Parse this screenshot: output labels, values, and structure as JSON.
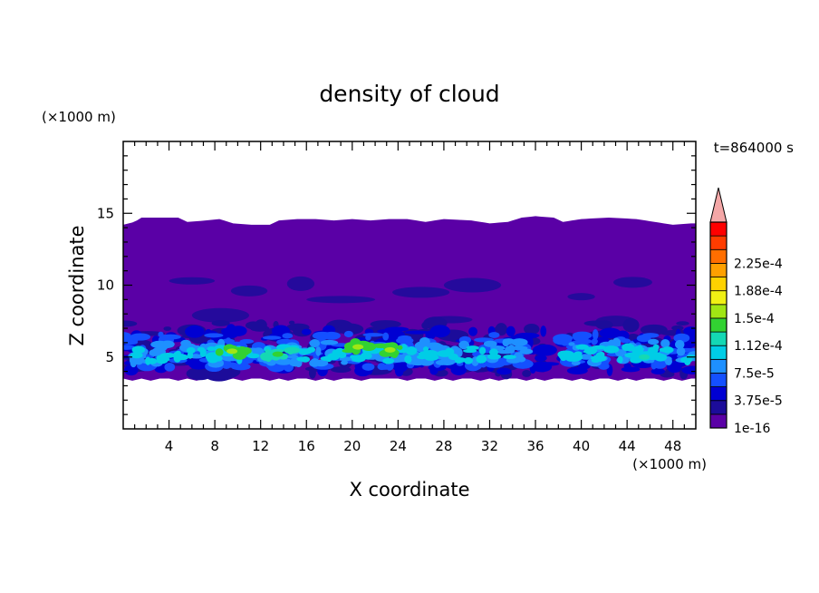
{
  "chart_data": {
    "type": "heatmap",
    "title": "density of cloud",
    "time_label": "t=864000 s",
    "xlabel": "X coordinate",
    "ylabel": "Z coordinate",
    "x_unit": "(×1000 m)",
    "y_unit": "(×1000 m)",
    "xlim": [
      0,
      50
    ],
    "ylim": [
      0,
      20
    ],
    "x_ticks": [
      4,
      8,
      12,
      16,
      20,
      24,
      28,
      32,
      36,
      40,
      44,
      48
    ],
    "y_ticks": [
      5,
      10,
      15
    ],
    "colorbar": {
      "labels": [
        "1e-16",
        "3.75e-5",
        "7.5e-5",
        "1.12e-4",
        "1.5e-4",
        "1.88e-4",
        "2.25e-4"
      ],
      "level_colors": [
        "#5a00a6",
        "#1c0c9a",
        "#0000d2",
        "#1450ff",
        "#1e90ff",
        "#00cde6",
        "#14d8b4",
        "#32d232",
        "#a0e614",
        "#f0f014",
        "#ffd200",
        "#ffa000",
        "#ff6e00",
        "#ff3c00",
        "#ff0000"
      ],
      "extend_color": "#f4a7a7"
    },
    "cloud_layer": {
      "x_range": [
        0,
        50
      ],
      "bottom_z": 3.5,
      "top_z_profile": [
        [
          0,
          14.2
        ],
        [
          1,
          14.4
        ],
        [
          1.6,
          14.7
        ],
        [
          4.8,
          14.7
        ],
        [
          5.6,
          14.4
        ],
        [
          7.2,
          14.5
        ],
        [
          8.4,
          14.6
        ],
        [
          9.6,
          14.3
        ],
        [
          11.2,
          14.2
        ],
        [
          12.8,
          14.2
        ],
        [
          13.6,
          14.5
        ],
        [
          15.2,
          14.6
        ],
        [
          16.8,
          14.6
        ],
        [
          18.4,
          14.5
        ],
        [
          20.0,
          14.6
        ],
        [
          21.6,
          14.5
        ],
        [
          23.2,
          14.6
        ],
        [
          24.8,
          14.6
        ],
        [
          26.4,
          14.4
        ],
        [
          28.0,
          14.6
        ],
        [
          30.4,
          14.5
        ],
        [
          32.0,
          14.3
        ],
        [
          33.6,
          14.4
        ],
        [
          34.8,
          14.7
        ],
        [
          36.0,
          14.8
        ],
        [
          37.6,
          14.7
        ],
        [
          38.4,
          14.4
        ],
        [
          40.0,
          14.6
        ],
        [
          42.4,
          14.7
        ],
        [
          44.8,
          14.6
        ],
        [
          46.4,
          14.4
        ],
        [
          48.0,
          14.2
        ],
        [
          49.6,
          14.3
        ],
        [
          50,
          14.3
        ]
      ],
      "dense_band_z": [
        4.0,
        7.0
      ],
      "peak_regions": [
        {
          "x": 9.5,
          "z": 5.4,
          "level": 8
        },
        {
          "x": 13.5,
          "z": 5.2,
          "level": 7
        },
        {
          "x": 20.5,
          "z": 5.7,
          "level": 8
        },
        {
          "x": 23.3,
          "z": 5.5,
          "level": 8
        },
        {
          "x": 45.5,
          "z": 5.0,
          "level": 6
        }
      ]
    }
  }
}
